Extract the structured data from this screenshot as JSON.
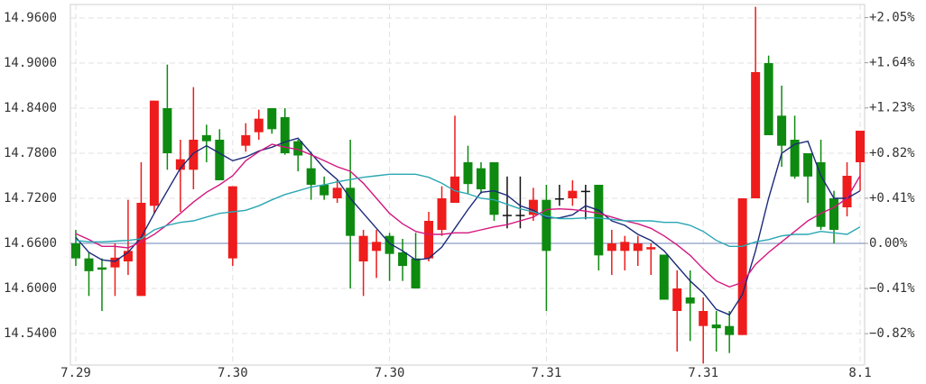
{
  "chart_data": {
    "type": "candlestick",
    "categories": [
      "7.29",
      null,
      null,
      null,
      null,
      null,
      null,
      null,
      null,
      null,
      null,
      null,
      "7.30",
      null,
      null,
      null,
      null,
      null,
      null,
      null,
      null,
      null,
      null,
      null,
      "7.30",
      null,
      null,
      null,
      null,
      null,
      null,
      null,
      null,
      null,
      null,
      null,
      "7.31",
      null,
      null,
      null,
      null,
      null,
      null,
      null,
      null,
      null,
      null,
      null,
      "7.31",
      null,
      null,
      null,
      null,
      null,
      null,
      null,
      null,
      null,
      null,
      null,
      "8.1"
    ],
    "open": [
      14.66,
      14.64,
      14.628,
      14.628,
      14.636,
      14.59,
      14.71,
      14.84,
      14.758,
      14.758,
      14.804,
      14.798,
      14.64,
      14.79,
      14.808,
      14.84,
      14.828,
      14.796,
      14.76,
      14.738,
      14.72,
      14.734,
      14.636,
      14.65,
      14.67,
      14.648,
      14.64,
      14.64,
      14.678,
      14.714,
      14.768,
      14.76,
      14.768,
      14.698,
      14.698,
      14.698,
      14.718,
      14.72,
      14.72,
      14.73,
      14.738,
      14.65,
      14.65,
      14.65,
      14.652,
      14.645,
      14.57,
      14.588,
      14.55,
      14.552,
      14.55,
      14.538,
      14.72,
      14.9,
      14.83,
      14.798,
      14.78,
      14.768,
      14.72,
      14.708,
      14.768
    ],
    "high": [
      14.678,
      14.648,
      14.64,
      14.66,
      14.718,
      14.768,
      14.85,
      14.898,
      14.798,
      14.868,
      14.818,
      14.812,
      14.736,
      14.82,
      14.838,
      14.84,
      14.84,
      14.798,
      14.782,
      14.749,
      14.744,
      14.798,
      14.678,
      14.678,
      14.674,
      14.666,
      14.674,
      14.702,
      14.736,
      14.83,
      14.79,
      14.768,
      14.768,
      14.749,
      14.749,
      14.734,
      14.738,
      14.738,
      14.744,
      14.738,
      14.738,
      14.678,
      14.67,
      14.67,
      14.66,
      14.645,
      14.624,
      14.624,
      14.588,
      14.57,
      14.57,
      14.72,
      14.975,
      14.91,
      14.87,
      14.83,
      14.78,
      14.798,
      14.73,
      14.768,
      14.81
    ],
    "low": [
      14.63,
      14.59,
      14.57,
      14.59,
      14.618,
      14.59,
      14.7,
      14.758,
      14.702,
      14.732,
      14.768,
      14.744,
      14.63,
      14.782,
      14.798,
      14.806,
      14.778,
      14.756,
      14.718,
      14.718,
      14.714,
      14.6,
      14.59,
      14.614,
      14.61,
      14.61,
      14.6,
      14.636,
      14.67,
      14.714,
      14.726,
      14.726,
      14.69,
      14.68,
      14.68,
      14.69,
      14.57,
      14.71,
      14.71,
      14.692,
      14.624,
      14.618,
      14.624,
      14.63,
      14.618,
      14.585,
      14.516,
      14.53,
      14.5,
      14.516,
      14.514,
      14.538,
      14.72,
      14.804,
      14.762,
      14.746,
      14.714,
      14.678,
      14.66,
      14.696,
      14.73
    ],
    "close": [
      14.64,
      14.623,
      14.625,
      14.641,
      14.65,
      14.714,
      14.85,
      14.78,
      14.772,
      14.798,
      14.796,
      14.744,
      14.736,
      14.804,
      14.826,
      14.812,
      14.78,
      14.777,
      14.738,
      14.724,
      14.734,
      14.67,
      14.67,
      14.662,
      14.646,
      14.63,
      14.6,
      14.69,
      14.72,
      14.749,
      14.739,
      14.732,
      14.698,
      14.698,
      14.698,
      14.718,
      14.65,
      14.72,
      14.73,
      14.73,
      14.644,
      14.66,
      14.662,
      14.66,
      14.655,
      14.585,
      14.6,
      14.58,
      14.57,
      14.547,
      14.538,
      14.72,
      14.888,
      14.804,
      14.79,
      14.749,
      14.749,
      14.682,
      14.678,
      14.75,
      14.81
    ],
    "up_color": "#ee1c1c",
    "down_color": "#0e8a10",
    "flat_color": "#111111",
    "series": [
      {
        "color": "#1c2a78",
        "values": [
          14.668,
          14.648,
          14.638,
          14.636,
          14.648,
          14.668,
          14.7,
          14.73,
          14.76,
          14.78,
          14.79,
          14.78,
          14.77,
          14.775,
          14.783,
          14.788,
          14.795,
          14.8,
          14.78,
          14.76,
          14.745,
          14.72,
          14.7,
          14.68,
          14.66,
          14.65,
          14.638,
          14.64,
          14.655,
          14.68,
          14.705,
          14.728,
          14.73,
          14.724,
          14.71,
          14.704,
          14.694,
          14.694,
          14.698,
          14.71,
          14.704,
          14.69,
          14.684,
          14.672,
          14.664,
          14.65,
          14.63,
          14.61,
          14.594,
          14.572,
          14.565,
          14.592,
          14.65,
          14.72,
          14.78,
          14.792,
          14.796,
          14.75,
          14.72,
          14.72,
          14.73
        ]
      },
      {
        "color": "#d4177f",
        "values": [
          14.673,
          14.665,
          14.656,
          14.656,
          14.654,
          14.662,
          14.672,
          14.685,
          14.7,
          14.715,
          14.728,
          14.738,
          14.75,
          14.77,
          14.782,
          14.792,
          14.788,
          14.785,
          14.778,
          14.77,
          14.762,
          14.756,
          14.74,
          14.72,
          14.7,
          14.686,
          14.676,
          14.672,
          14.672,
          14.674,
          14.674,
          14.678,
          14.682,
          14.685,
          14.69,
          14.695,
          14.705,
          14.706,
          14.705,
          14.703,
          14.7,
          14.695,
          14.69,
          14.686,
          14.68,
          14.67,
          14.658,
          14.644,
          14.626,
          14.61,
          14.602,
          14.608,
          14.632,
          14.648,
          14.662,
          14.676,
          14.69,
          14.7,
          14.708,
          14.72,
          14.75
        ]
      },
      {
        "color": "#2aa7b3",
        "values": [
          14.664,
          14.662,
          14.662,
          14.663,
          14.664,
          14.666,
          14.678,
          14.684,
          14.688,
          14.69,
          14.695,
          14.7,
          14.702,
          14.704,
          14.71,
          14.718,
          14.725,
          14.73,
          14.735,
          14.738,
          14.742,
          14.745,
          14.748,
          14.75,
          14.752,
          14.752,
          14.752,
          14.748,
          14.74,
          14.73,
          14.726,
          14.72,
          14.718,
          14.712,
          14.706,
          14.702,
          14.696,
          14.693,
          14.693,
          14.694,
          14.694,
          14.692,
          14.69,
          14.69,
          14.69,
          14.688,
          14.688,
          14.684,
          14.676,
          14.664,
          14.656,
          14.656,
          14.662,
          14.665,
          14.67,
          14.672,
          14.672,
          14.676,
          14.674,
          14.672,
          14.682
        ]
      }
    ],
    "baseline": 14.66,
    "baseline_color": "#8a9cc4",
    "ylim": [
      14.498,
      14.978
    ],
    "yticks": [
      {
        "value": 14.96,
        "label": "14.9600"
      },
      {
        "value": 14.9,
        "label": "14.9000"
      },
      {
        "value": 14.84,
        "label": "14.8400"
      },
      {
        "value": 14.78,
        "label": "14.7800"
      },
      {
        "value": 14.72,
        "label": "14.7200"
      },
      {
        "value": 14.66,
        "label": "14.6600"
      },
      {
        "value": 14.6,
        "label": "14.6000"
      },
      {
        "value": 14.54,
        "label": "14.5400"
      }
    ],
    "y2lim": [
      -1.105,
      2.169
    ],
    "y2ticks": [
      {
        "value": 2.05,
        "label": "+2.05%"
      },
      {
        "value": 1.64,
        "label": "+1.64%"
      },
      {
        "value": 1.23,
        "label": "+1.23%"
      },
      {
        "value": 0.82,
        "label": "+0.82%"
      },
      {
        "value": 0.41,
        "label": "+0.41%"
      },
      {
        "value": 0,
        "label": "0.00%"
      },
      {
        "value": -0.41,
        "label": "−0.41%"
      },
      {
        "value": -0.82,
        "label": "−0.82%"
      }
    ],
    "grid": true
  }
}
